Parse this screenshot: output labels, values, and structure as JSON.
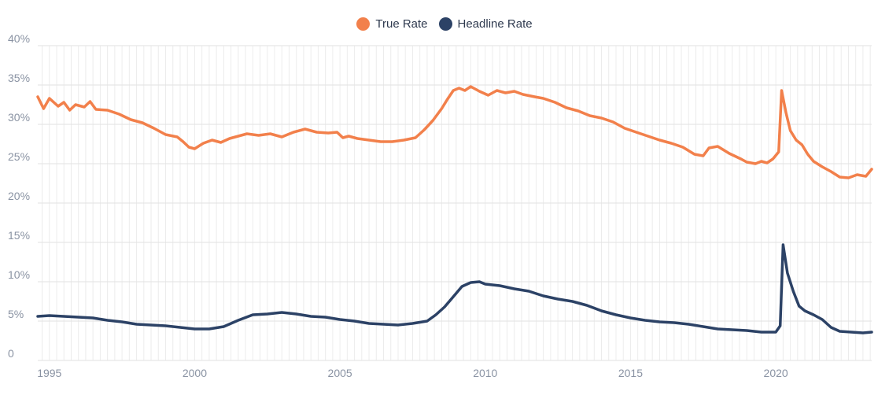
{
  "legend": {
    "true_rate": {
      "label": "True Rate",
      "color": "#f2804b"
    },
    "headline_rate": {
      "label": "Headline Rate",
      "color": "#2c4266"
    }
  },
  "chart_data": {
    "type": "line",
    "ylim": [
      0,
      40
    ],
    "xlim": [
      1994.6,
      2023.3
    ],
    "y_ticks": [
      "0",
      "5%",
      "10%",
      "15%",
      "20%",
      "25%",
      "30%",
      "35%",
      "40%"
    ],
    "y_tick_values": [
      0,
      5,
      10,
      15,
      20,
      25,
      30,
      35,
      40
    ],
    "x_ticks": [
      "1995",
      "2000",
      "2005",
      "2010",
      "2015",
      "2020"
    ],
    "x_tick_values": [
      1995,
      2000,
      2005,
      2010,
      2015,
      2020
    ],
    "grid": true,
    "legend_position": "top-center",
    "series": [
      {
        "name": "True Rate",
        "color": "#f2804b",
        "points": [
          [
            1994.6,
            33.5
          ],
          [
            1994.8,
            32.0
          ],
          [
            1995.0,
            33.3
          ],
          [
            1995.3,
            32.3
          ],
          [
            1995.5,
            32.8
          ],
          [
            1995.7,
            31.8
          ],
          [
            1995.9,
            32.5
          ],
          [
            1996.2,
            32.2
          ],
          [
            1996.4,
            32.9
          ],
          [
            1996.6,
            31.9
          ],
          [
            1997.0,
            31.8
          ],
          [
            1997.4,
            31.3
          ],
          [
            1997.8,
            30.6
          ],
          [
            1998.2,
            30.2
          ],
          [
            1998.6,
            29.5
          ],
          [
            1999.0,
            28.7
          ],
          [
            1999.4,
            28.4
          ],
          [
            1999.6,
            27.8
          ],
          [
            1999.8,
            27.1
          ],
          [
            2000.0,
            26.9
          ],
          [
            2000.3,
            27.6
          ],
          [
            2000.6,
            28.0
          ],
          [
            2000.9,
            27.7
          ],
          [
            2001.2,
            28.2
          ],
          [
            2001.5,
            28.5
          ],
          [
            2001.8,
            28.8
          ],
          [
            2002.2,
            28.6
          ],
          [
            2002.6,
            28.8
          ],
          [
            2003.0,
            28.4
          ],
          [
            2003.4,
            29.0
          ],
          [
            2003.8,
            29.4
          ],
          [
            2004.2,
            29.0
          ],
          [
            2004.6,
            28.9
          ],
          [
            2004.9,
            29.0
          ],
          [
            2005.1,
            28.3
          ],
          [
            2005.3,
            28.5
          ],
          [
            2005.6,
            28.2
          ],
          [
            2006.0,
            28.0
          ],
          [
            2006.4,
            27.8
          ],
          [
            2006.8,
            27.8
          ],
          [
            2007.2,
            28.0
          ],
          [
            2007.6,
            28.3
          ],
          [
            2007.9,
            29.3
          ],
          [
            2008.2,
            30.5
          ],
          [
            2008.5,
            32.0
          ],
          [
            2008.7,
            33.2
          ],
          [
            2008.9,
            34.3
          ],
          [
            2009.1,
            34.6
          ],
          [
            2009.3,
            34.3
          ],
          [
            2009.5,
            34.8
          ],
          [
            2009.8,
            34.2
          ],
          [
            2010.1,
            33.7
          ],
          [
            2010.4,
            34.3
          ],
          [
            2010.7,
            34.0
          ],
          [
            2011.0,
            34.2
          ],
          [
            2011.3,
            33.8
          ],
          [
            2011.7,
            33.5
          ],
          [
            2012.0,
            33.3
          ],
          [
            2012.4,
            32.8
          ],
          [
            2012.8,
            32.1
          ],
          [
            2013.2,
            31.7
          ],
          [
            2013.6,
            31.1
          ],
          [
            2014.0,
            30.8
          ],
          [
            2014.4,
            30.3
          ],
          [
            2014.8,
            29.5
          ],
          [
            2015.2,
            29.0
          ],
          [
            2015.6,
            28.5
          ],
          [
            2016.0,
            28.0
          ],
          [
            2016.4,
            27.6
          ],
          [
            2016.8,
            27.1
          ],
          [
            2017.2,
            26.2
          ],
          [
            2017.5,
            26.0
          ],
          [
            2017.7,
            27.0
          ],
          [
            2018.0,
            27.2
          ],
          [
            2018.4,
            26.3
          ],
          [
            2018.8,
            25.6
          ],
          [
            2019.0,
            25.2
          ],
          [
            2019.3,
            25.0
          ],
          [
            2019.5,
            25.3
          ],
          [
            2019.7,
            25.1
          ],
          [
            2019.9,
            25.6
          ],
          [
            2020.1,
            26.5
          ],
          [
            2020.2,
            34.3
          ],
          [
            2020.35,
            31.5
          ],
          [
            2020.5,
            29.2
          ],
          [
            2020.7,
            28.0
          ],
          [
            2020.9,
            27.4
          ],
          [
            2021.1,
            26.2
          ],
          [
            2021.3,
            25.3
          ],
          [
            2021.6,
            24.6
          ],
          [
            2021.9,
            24.0
          ],
          [
            2022.2,
            23.3
          ],
          [
            2022.5,
            23.2
          ],
          [
            2022.8,
            23.6
          ],
          [
            2023.1,
            23.4
          ],
          [
            2023.3,
            24.3
          ]
        ]
      },
      {
        "name": "Headline Rate",
        "color": "#2c4266",
        "points": [
          [
            1994.6,
            5.6
          ],
          [
            1995.0,
            5.7
          ],
          [
            1995.5,
            5.6
          ],
          [
            1996.0,
            5.5
          ],
          [
            1996.5,
            5.4
          ],
          [
            1997.0,
            5.1
          ],
          [
            1997.5,
            4.9
          ],
          [
            1998.0,
            4.6
          ],
          [
            1998.5,
            4.5
          ],
          [
            1999.0,
            4.4
          ],
          [
            1999.5,
            4.2
          ],
          [
            2000.0,
            4.0
          ],
          [
            2000.5,
            4.0
          ],
          [
            2001.0,
            4.3
          ],
          [
            2001.5,
            5.1
          ],
          [
            2002.0,
            5.8
          ],
          [
            2002.5,
            5.9
          ],
          [
            2003.0,
            6.1
          ],
          [
            2003.5,
            5.9
          ],
          [
            2004.0,
            5.6
          ],
          [
            2004.5,
            5.5
          ],
          [
            2005.0,
            5.2
          ],
          [
            2005.5,
            5.0
          ],
          [
            2006.0,
            4.7
          ],
          [
            2006.5,
            4.6
          ],
          [
            2007.0,
            4.5
          ],
          [
            2007.5,
            4.7
          ],
          [
            2008.0,
            5.0
          ],
          [
            2008.3,
            5.8
          ],
          [
            2008.6,
            6.8
          ],
          [
            2008.9,
            8.1
          ],
          [
            2009.2,
            9.4
          ],
          [
            2009.5,
            9.9
          ],
          [
            2009.8,
            10.0
          ],
          [
            2010.0,
            9.7
          ],
          [
            2010.5,
            9.5
          ],
          [
            2011.0,
            9.1
          ],
          [
            2011.5,
            8.8
          ],
          [
            2012.0,
            8.2
          ],
          [
            2012.5,
            7.8
          ],
          [
            2013.0,
            7.5
          ],
          [
            2013.5,
            7.0
          ],
          [
            2014.0,
            6.3
          ],
          [
            2014.5,
            5.8
          ],
          [
            2015.0,
            5.4
          ],
          [
            2015.5,
            5.1
          ],
          [
            2016.0,
            4.9
          ],
          [
            2016.5,
            4.8
          ],
          [
            2017.0,
            4.6
          ],
          [
            2017.5,
            4.3
          ],
          [
            2018.0,
            4.0
          ],
          [
            2018.5,
            3.9
          ],
          [
            2019.0,
            3.8
          ],
          [
            2019.5,
            3.6
          ],
          [
            2020.0,
            3.6
          ],
          [
            2020.15,
            4.4
          ],
          [
            2020.25,
            14.7
          ],
          [
            2020.4,
            11.1
          ],
          [
            2020.6,
            8.8
          ],
          [
            2020.8,
            6.9
          ],
          [
            2021.0,
            6.3
          ],
          [
            2021.3,
            5.8
          ],
          [
            2021.6,
            5.2
          ],
          [
            2021.9,
            4.2
          ],
          [
            2022.2,
            3.7
          ],
          [
            2022.6,
            3.6
          ],
          [
            2023.0,
            3.5
          ],
          [
            2023.3,
            3.6
          ]
        ]
      }
    ]
  }
}
